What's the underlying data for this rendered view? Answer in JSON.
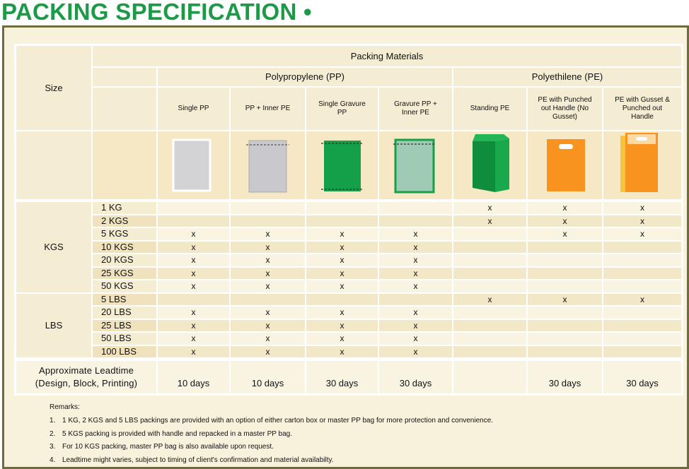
{
  "title": "PACKING SPECIFICATION •",
  "table": {
    "size_header": "Size",
    "materials_header": "Packing Materials",
    "groups": [
      "Polypropylene (PP)",
      "Polyethilene (PE)"
    ],
    "columns": [
      "Single PP",
      "PP + Inner PE",
      "Single Gravure PP",
      "Gravure PP + Inner PE",
      "Standing PE",
      "PE with Punched out Handle (No Gusset)",
      "PE with Gusset & Punched out Handle"
    ],
    "size_groups": [
      {
        "label": "KGS",
        "rows": [
          {
            "size": "1 KG",
            "cells": [
              null,
              null,
              null,
              null,
              "x",
              "x",
              "x"
            ]
          },
          {
            "size": "2 KGS",
            "cells": [
              null,
              null,
              null,
              null,
              "x",
              "x",
              "x"
            ]
          },
          {
            "size": "5 KGS",
            "cells": [
              "x",
              "x",
              "x",
              "x",
              null,
              "x",
              "x"
            ]
          },
          {
            "size": "10 KGS",
            "cells": [
              "x",
              "x",
              "x",
              "x",
              null,
              null,
              null
            ]
          },
          {
            "size": "20 KGS",
            "cells": [
              "x",
              "x",
              "x",
              "x",
              null,
              null,
              null
            ]
          },
          {
            "size": "25 KGS",
            "cells": [
              "x",
              "x",
              "x",
              "x",
              null,
              null,
              null
            ]
          },
          {
            "size": "50 KGS",
            "cells": [
              "x",
              "x",
              "x",
              "x",
              null,
              null,
              null
            ]
          }
        ]
      },
      {
        "label": "LBS",
        "rows": [
          {
            "size": "5 LBS",
            "cells": [
              null,
              null,
              null,
              null,
              "x",
              "x",
              "x"
            ]
          },
          {
            "size": "20 LBS",
            "cells": [
              "x",
              "x",
              "x",
              "x",
              null,
              null,
              null
            ]
          },
          {
            "size": "25 LBS",
            "cells": [
              "x",
              "x",
              "x",
              "x",
              null,
              null,
              null
            ]
          },
          {
            "size": "50 LBS",
            "cells": [
              "x",
              "x",
              "x",
              "x",
              null,
              null,
              null
            ]
          },
          {
            "size": "100 LBS",
            "cells": [
              "x",
              "x",
              "x",
              "x",
              null,
              null,
              null
            ]
          }
        ]
      }
    ],
    "leadtime_label": [
      "Approximate Leadtime",
      "(Design, Block, Printing)"
    ],
    "leadtime": [
      "10 days",
      "10 days",
      "30 days",
      "30 days",
      null,
      "30 days",
      "30 days"
    ]
  },
  "remarks": {
    "title": "Remarks:",
    "items": [
      {
        "number": "1.",
        "text": "1 KG, 2 KGS and 5 LBS packings are provided with an option of either carton box or master PP bag for more protection and convenience."
      },
      {
        "number": "2.",
        "text": "5 KGS packing is provided with handle and repacked in a master PP bag."
      },
      {
        "number": "3.",
        "text": "For 10 KGS packing, master PP bag is also available upon request."
      },
      {
        "number": "4.",
        "text": "Leadtime might varies, subject to timing of client's confirmation and material availabilty."
      }
    ]
  }
}
